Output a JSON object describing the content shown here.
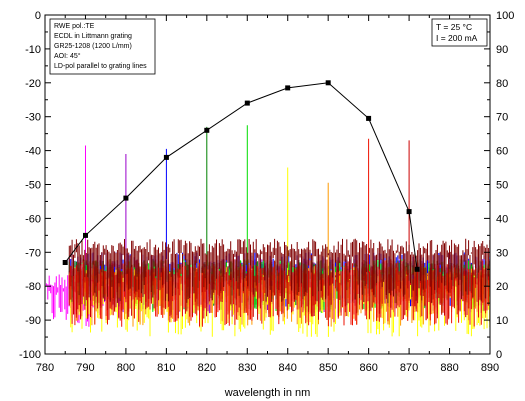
{
  "chart_data": {
    "type": "line",
    "title": "",
    "xlabel": "wavelength in nm",
    "ylabel": "",
    "y2label": "",
    "xlim": [
      780,
      890
    ],
    "ylim": [
      -100,
      0
    ],
    "y2lim": [
      0,
      100
    ],
    "grid": false,
    "x_ticks": [
      "780",
      "790",
      "800",
      "810",
      "820",
      "830",
      "840",
      "850",
      "860",
      "870",
      "880",
      "890"
    ],
    "y_ticks": [
      "-100",
      "-90",
      "-80",
      "-70",
      "-60",
      "-50",
      "-40",
      "-30",
      "-20",
      "-10",
      "0"
    ],
    "y2_ticks": [
      "0",
      "10",
      "20",
      "30",
      "40",
      "50",
      "60",
      "70",
      "80",
      "90",
      "100"
    ],
    "annotation_left": [
      "RWE pol.:TE",
      "ECDL in Littmann grating",
      "GR25-1208 (1200 L/mm)",
      "AOI: 45°",
      "LD-pol parallel to grating lines"
    ],
    "annotation_right": [
      "T = 25 °C",
      "I = 200 mA"
    ],
    "series": [
      {
        "kind": "power-curve",
        "axis": "right",
        "color": "#000000",
        "x": [
          785,
          790,
          800,
          810,
          820,
          830,
          840,
          850,
          860,
          870,
          872
        ],
        "values": [
          27,
          35,
          46,
          58,
          66,
          74,
          78.5,
          80,
          69.5,
          42,
          25
        ]
      },
      {
        "kind": "spectrum",
        "color": "#ff00ff",
        "peak_x": 790,
        "peak_y": -38.5,
        "x_range": [
          780,
          800
        ],
        "floor_low": -92,
        "floor_high": -76
      },
      {
        "kind": "spectrum",
        "color": "#9a00cc",
        "peak_x": 800,
        "peak_y": -41,
        "x_range": [
          786,
          890
        ],
        "floor_low": -88,
        "floor_high": -72
      },
      {
        "kind": "spectrum",
        "color": "#0000ff",
        "peak_x": 810,
        "peak_y": -39.5,
        "x_range": [
          786,
          890
        ],
        "floor_low": -86,
        "floor_high": -70
      },
      {
        "kind": "spectrum",
        "color": "#008000",
        "peak_x": 820,
        "peak_y": -33,
        "x_range": [
          786,
          890
        ],
        "floor_low": -87,
        "floor_high": -72
      },
      {
        "kind": "spectrum",
        "color": "#00dd00",
        "peak_x": 830,
        "peak_y": -32.5,
        "x_range": [
          786,
          890
        ],
        "floor_low": -88,
        "floor_high": -72
      },
      {
        "kind": "spectrum",
        "color": "#ffff00",
        "peak_x": 840,
        "peak_y": -45,
        "x_range": [
          786,
          890
        ],
        "floor_low": -95,
        "floor_high": -76
      },
      {
        "kind": "spectrum",
        "color": "#ff9900",
        "peak_x": 850,
        "peak_y": -49.5,
        "x_range": [
          786,
          890
        ],
        "floor_low": -92,
        "floor_high": -74
      },
      {
        "kind": "spectrum",
        "color": "#ee1100",
        "peak_x": 860,
        "peak_y": -36.5,
        "x_range": [
          786,
          890
        ],
        "floor_low": -92,
        "floor_high": -74
      },
      {
        "kind": "spectrum",
        "color": "#cc0000",
        "peak_x": 870,
        "peak_y": -37,
        "x_range": [
          786,
          890
        ],
        "floor_low": -90,
        "floor_high": -72
      },
      {
        "kind": "spectrum",
        "color": "#800000",
        "peak_x": 880,
        "peak_y": -72,
        "x_range": [
          786,
          890
        ],
        "floor_low": -85,
        "floor_high": -66
      }
    ]
  }
}
